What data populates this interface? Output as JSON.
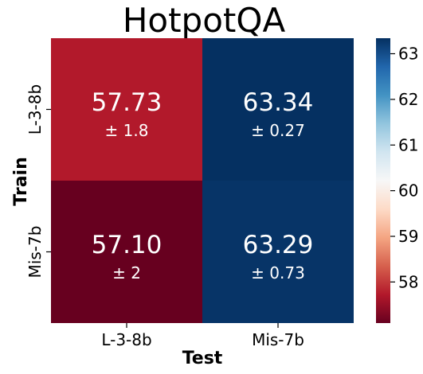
{
  "chart_data": {
    "type": "heatmap",
    "title": "HotpotQA",
    "xlabel": "Test",
    "ylabel": "Train",
    "x_categories": [
      "L-3-8b",
      "Mis-7b"
    ],
    "y_categories": [
      "L-3-8b",
      "Mis-7b"
    ],
    "values": [
      [
        57.73,
        63.34
      ],
      [
        57.1,
        63.29
      ]
    ],
    "value_labels": [
      [
        "57.73",
        "63.34"
      ],
      [
        "57.10",
        "63.29"
      ]
    ],
    "std_labels": [
      [
        "± 1.8",
        "± 0.27"
      ],
      [
        "± 2",
        "± 0.73"
      ]
    ],
    "colorbar": {
      "colormap": "RdBu",
      "range": [
        57.1,
        63.34
      ],
      "ticks": [
        58,
        59,
        60,
        61,
        62,
        63
      ],
      "tick_labels": [
        "58",
        "59",
        "60",
        "61",
        "62",
        "63"
      ]
    },
    "grid": false,
    "colors": {
      "low": "#67001f",
      "mid": "#f7f7f7",
      "high": "#053061"
    }
  }
}
